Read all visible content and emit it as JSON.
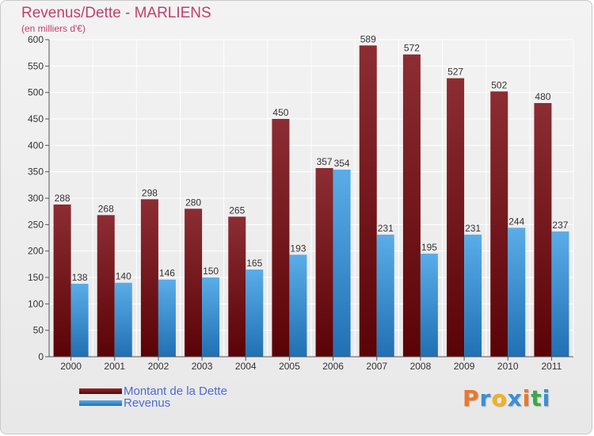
{
  "header": {
    "title": "Revenus/Dette - MARLIENS",
    "subtitle": "(en milliers d'€)"
  },
  "brand": {
    "text": "Proxiti",
    "colors": [
      "#e8792b",
      "#3b8fd6",
      "#f2b21b",
      "#3b8fd6",
      "#e8792b",
      "#3aa84a",
      "#3b8fd6"
    ]
  },
  "colors": {
    "series_dette": "#8b1a1f",
    "series_revenus": "#3b93d9",
    "title": "#c0406a",
    "legend_text": "#4a6bd6",
    "grid": "#ffffff",
    "axis": "#555555"
  },
  "chart_data": {
    "type": "bar",
    "title": "Revenus/Dette - MARLIENS",
    "subtitle": "(en milliers d'€)",
    "xlabel": "",
    "ylabel": "",
    "ylim": [
      0,
      600
    ],
    "yticks": [
      0,
      50,
      100,
      150,
      200,
      250,
      300,
      350,
      400,
      450,
      500,
      550,
      600
    ],
    "grid": true,
    "legend_position": "bottom-left",
    "categories": [
      "2000",
      "2001",
      "2002",
      "2003",
      "2004",
      "2005",
      "2006",
      "2007",
      "2008",
      "2009",
      "2010",
      "2011"
    ],
    "series": [
      {
        "name": "Montant de la Dette",
        "values": [
          288,
          268,
          298,
          280,
          265,
          450,
          357,
          589,
          572,
          527,
          502,
          480
        ]
      },
      {
        "name": "Revenus",
        "values": [
          138,
          140,
          146,
          150,
          165,
          193,
          354,
          231,
          195,
          231,
          244,
          237
        ]
      }
    ]
  }
}
